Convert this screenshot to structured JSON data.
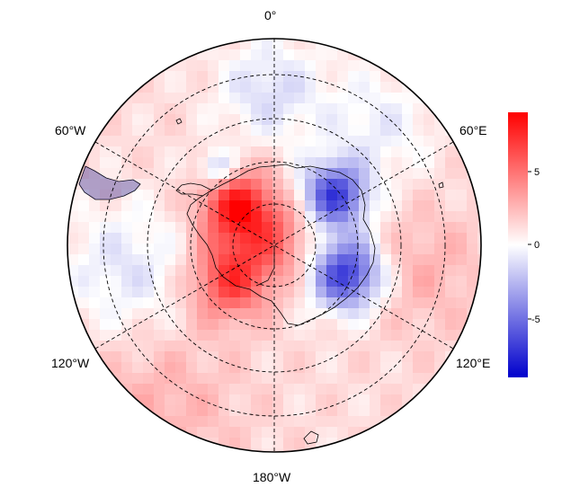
{
  "map": {
    "projection": "south polar stereographic",
    "longitude_labels": {
      "top": "0°",
      "upper_left": "60°W",
      "upper_right": "60°E",
      "lower_left": "120°W",
      "lower_right": "120°E",
      "bottom": "180°W"
    },
    "graticule_style": "dashed",
    "field_description": "gridded anomaly field, red positive, blue negative"
  },
  "colorbar": {
    "ticks": [
      "5",
      "0",
      "-5"
    ],
    "range": [
      -9,
      9
    ],
    "colors": {
      "max": "#ff0000",
      "mid": "#ffffff",
      "min": "#0000cc"
    }
  }
}
